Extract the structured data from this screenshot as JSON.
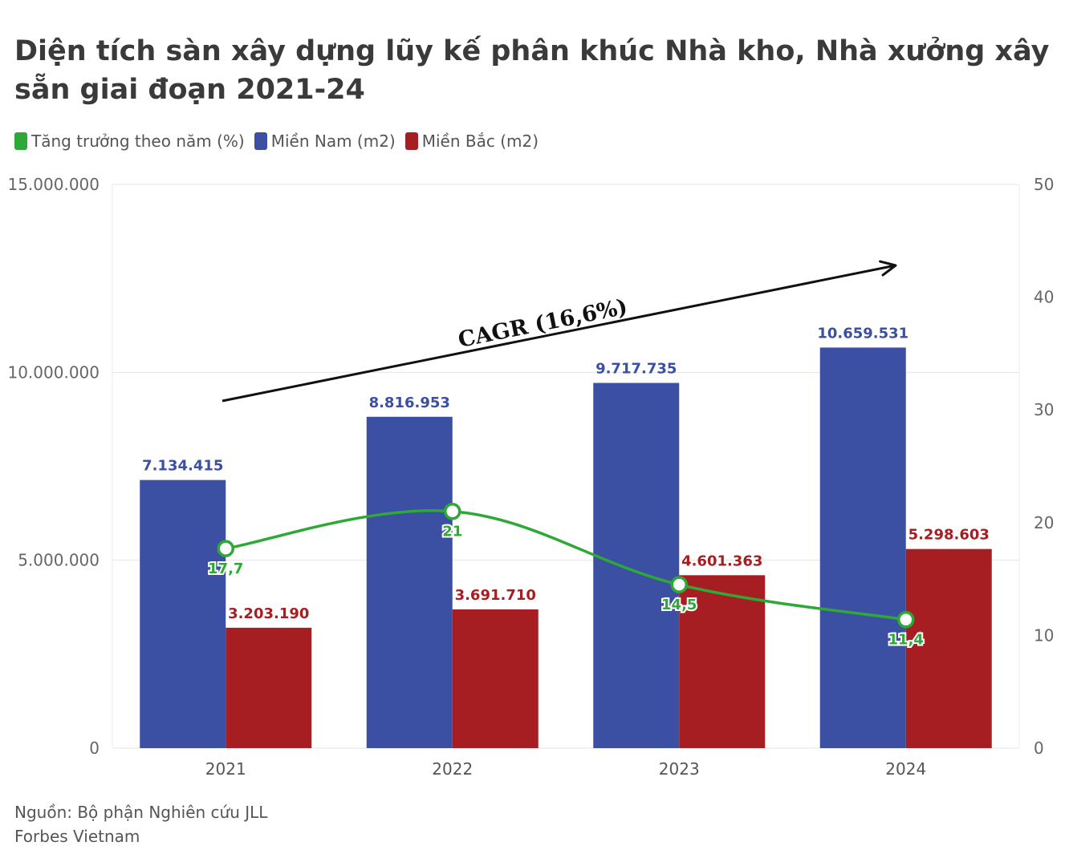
{
  "title": "Diện tích sàn xây dựng lũy kế phân khúc Nhà kho, Nhà xưởng xây sẵn giai đoạn 2021-24",
  "source": "Nguồn: Bộ phận Nghiên cứu JLL",
  "publisher": "Forbes Vietnam",
  "colors": {
    "growth": "#2ea836",
    "south": "#3b4fa3",
    "north": "#a61e22"
  },
  "chart_data": {
    "type": "bar",
    "categories": [
      "2021",
      "2022",
      "2023",
      "2024"
    ],
    "series": [
      {
        "name": "Miền Nam (m2)",
        "axis": "left",
        "values": [
          7134415,
          8816953,
          9717735,
          10659531
        ],
        "labels": [
          "7.134.415",
          "8.816.953",
          "9.717.735",
          "10.659.531"
        ]
      },
      {
        "name": "Miền Bắc (m2)",
        "axis": "left",
        "values": [
          3203190,
          3691710,
          4601363,
          5298603
        ],
        "labels": [
          "3.203.190",
          "3.691.710",
          "4.601.363",
          "5.298.603"
        ]
      },
      {
        "name": "Tăng trưởng theo năm (%)",
        "type": "line",
        "axis": "right",
        "values": [
          17.7,
          21,
          14.5,
          11.4
        ],
        "labels": [
          "17,7",
          "21",
          "14,5",
          "11,4"
        ]
      }
    ],
    "legend": [
      "Tăng trưởng theo năm (%)",
      "Miền Nam (m2)",
      "Miền Bắc (m2)"
    ],
    "legend_position": "top-left",
    "y_left": {
      "range": [
        0,
        15000000
      ],
      "ticks": [
        0,
        5000000,
        10000000,
        15000000
      ],
      "tick_labels": [
        "0",
        "5.000.000",
        "10.000.000",
        "15.000.000"
      ]
    },
    "y_right": {
      "range": [
        0,
        50
      ],
      "ticks": [
        0,
        10,
        20,
        30,
        40,
        50
      ],
      "tick_labels": [
        "0",
        "10",
        "20",
        "30",
        "40",
        "50"
      ]
    },
    "annotation": "CAGR (16,6%)",
    "grid": true
  }
}
